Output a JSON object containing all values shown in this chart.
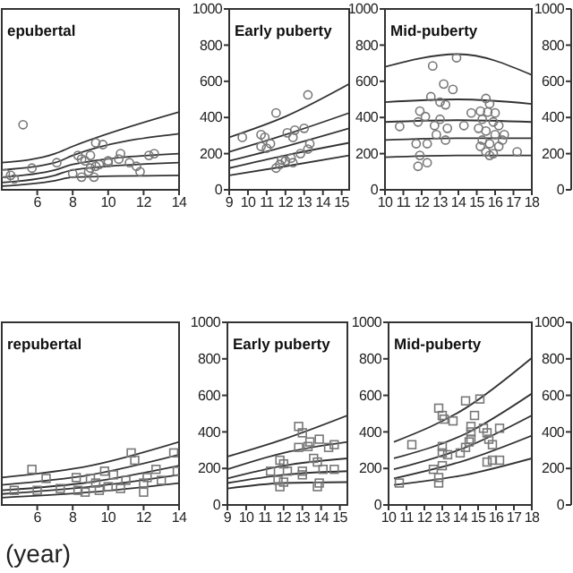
{
  "chart_data": [
    {
      "type": "scatter",
      "title": "epubertal",
      "xlim": [
        4,
        14
      ],
      "xticks": [
        6,
        8,
        10,
        12,
        14
      ],
      "ylim": [
        0,
        1000
      ],
      "tick_labels": "x",
      "grid": false,
      "series": [
        {
          "type": "line",
          "color": "#333333",
          "x": [
            4,
            7,
            8,
            14
          ],
          "values": [
            150,
            200,
            240,
            430
          ]
        },
        {
          "type": "line",
          "color": "#333333",
          "x": [
            4,
            7,
            8,
            14
          ],
          "values": [
            110,
            150,
            190,
            310
          ]
        },
        {
          "type": "line",
          "color": "#333333",
          "x": [
            4,
            7,
            8,
            14
          ],
          "values": [
            70,
            110,
            140,
            200
          ]
        },
        {
          "type": "line",
          "color": "#333333",
          "x": [
            4,
            7,
            8,
            14
          ],
          "values": [
            40,
            80,
            110,
            150
          ]
        },
        {
          "type": "line",
          "color": "#333333",
          "x": [
            4,
            7,
            8,
            14
          ],
          "values": [
            20,
            50,
            70,
            80
          ]
        },
        {
          "type": "scatter",
          "marker": "circle",
          "color": "#777777",
          "x": [
            5.2,
            4.2,
            4.5,
            4.7,
            5.7,
            7.1,
            8.3,
            8.5,
            8.7,
            9,
            9.3,
            9.7,
            9,
            9.3,
            10,
            10.7,
            10.6,
            11.2,
            11.6,
            11.8,
            12.3,
            12.6,
            8,
            8.5,
            9.2,
            8.9,
            10,
            9.5
          ],
          "values": [
            360,
            90,
            80,
            60,
            120,
            150,
            190,
            170,
            160,
            190,
            260,
            250,
            120,
            130,
            150,
            200,
            170,
            150,
            130,
            100,
            190,
            200,
            90,
            70,
            70,
            100,
            160,
            140
          ]
        }
      ]
    },
    {
      "type": "scatter",
      "title": "Early puberty",
      "xlim": [
        9,
        15.4
      ],
      "xticks": [
        9,
        10,
        11,
        12,
        13,
        14,
        15
      ],
      "ylim": [
        0,
        1000
      ],
      "yticks": [
        0,
        200,
        400,
        600,
        800,
        1000
      ],
      "grid": false,
      "series": [
        {
          "type": "line",
          "color": "#333333",
          "x": [
            9,
            12,
            15.4
          ],
          "values": [
            290,
            405,
            585
          ]
        },
        {
          "type": "line",
          "color": "#333333",
          "x": [
            9,
            12,
            15.4
          ],
          "values": [
            210,
            305,
            425
          ]
        },
        {
          "type": "line",
          "color": "#333333",
          "x": [
            9,
            12,
            15.4
          ],
          "values": [
            160,
            240,
            340
          ]
        },
        {
          "type": "line",
          "color": "#333333",
          "x": [
            9,
            12,
            15.4
          ],
          "values": [
            120,
            190,
            260
          ]
        },
        {
          "type": "line",
          "color": "#333333",
          "x": [
            9,
            12,
            15.4
          ],
          "values": [
            80,
            130,
            190
          ]
        },
        {
          "type": "scatter",
          "marker": "circle",
          "color": "#777777",
          "x": [
            13.2,
            11.5,
            9.7,
            10.7,
            10.9,
            11.2,
            10.7,
            11,
            12.1,
            12.4,
            12.5,
            13,
            13.3,
            13.2,
            12.3,
            11.8,
            11.7,
            12,
            12.4,
            11.5,
            12.8
          ],
          "values": [
            525,
            425,
            290,
            305,
            290,
            255,
            240,
            230,
            315,
            290,
            330,
            340,
            255,
            225,
            175,
            165,
            140,
            160,
            150,
            120,
            200
          ]
        }
      ]
    },
    {
      "type": "scatter",
      "title": "Mid-puberty",
      "xlim": [
        10,
        18
      ],
      "xticks": [
        10,
        11,
        12,
        13,
        14,
        15,
        16,
        17,
        18
      ],
      "ylim": [
        0,
        1000
      ],
      "yticks": [
        0,
        200,
        400,
        600,
        800,
        1000
      ],
      "y2lim": [
        0,
        1000
      ],
      "y2ticks": [
        0,
        200,
        400,
        600,
        800,
        1000
      ],
      "grid": false,
      "series": [
        {
          "type": "line",
          "color": "#333333",
          "x": [
            10,
            14,
            18
          ],
          "values": [
            680,
            750,
            635
          ]
        },
        {
          "type": "line",
          "color": "#333333",
          "x": [
            10,
            14,
            18
          ],
          "values": [
            485,
            500,
            475
          ]
        },
        {
          "type": "line",
          "color": "#333333",
          "x": [
            10,
            14,
            18
          ],
          "values": [
            375,
            385,
            375
          ]
        },
        {
          "type": "line",
          "color": "#333333",
          "x": [
            10,
            14,
            18
          ],
          "values": [
            275,
            285,
            285
          ]
        },
        {
          "type": "line",
          "color": "#333333",
          "x": [
            10,
            14,
            18
          ],
          "values": [
            180,
            190,
            190
          ]
        },
        {
          "type": "scatter",
          "marker": "circle",
          "color": "#777777",
          "x": [
            13.9,
            12.6,
            13.2,
            13.7,
            12.5,
            13,
            13.3,
            11.9,
            12.2,
            11.8,
            10.8,
            12.7,
            13,
            13.4,
            12.8,
            12.3,
            11.7,
            11.9,
            11.8,
            12.3,
            13.3,
            14.3,
            15.5,
            15.7,
            15.2,
            16,
            15.3,
            15.9,
            16.2,
            15.1,
            15.5,
            16,
            15.3,
            15.7,
            15.2,
            16.2,
            15.5,
            15.9,
            15.7,
            17.2,
            14.7,
            15.6,
            16.4,
            16.5
          ],
          "values": [
            730,
            685,
            585,
            555,
            515,
            485,
            470,
            435,
            405,
            375,
            350,
            355,
            390,
            340,
            305,
            255,
            255,
            190,
            130,
            150,
            275,
            355,
            505,
            475,
            435,
            425,
            390,
            375,
            355,
            340,
            325,
            305,
            275,
            255,
            240,
            240,
            210,
            200,
            190,
            210,
            425,
            430,
            275,
            305
          ]
        }
      ]
    },
    {
      "type": "scatter",
      "title": "repubertal",
      "xlabel": "(year)",
      "xlim": [
        4,
        14
      ],
      "xticks": [
        6,
        8,
        10,
        12,
        14
      ],
      "ylim": [
        0,
        1000
      ],
      "tick_labels": "x",
      "grid": false,
      "series": [
        {
          "type": "line",
          "color": "#333333",
          "x": [
            4,
            9,
            14
          ],
          "values": [
            150,
            215,
            345
          ]
        },
        {
          "type": "line",
          "color": "#333333",
          "x": [
            4,
            9,
            14
          ],
          "values": [
            110,
            165,
            275
          ]
        },
        {
          "type": "line",
          "color": "#333333",
          "x": [
            4,
            9,
            14
          ],
          "values": [
            80,
            125,
            215
          ]
        },
        {
          "type": "line",
          "color": "#333333",
          "x": [
            4,
            9,
            14
          ],
          "values": [
            60,
            100,
            165
          ]
        },
        {
          "type": "line",
          "color": "#333333",
          "x": [
            4,
            9,
            14
          ],
          "values": [
            40,
            70,
            120
          ]
        },
        {
          "type": "scatter",
          "marker": "square",
          "color": "#777777",
          "x": [
            5.7,
            6.5,
            8.2,
            9,
            9.8,
            10.3,
            11.3,
            11.5,
            12.7,
            13.7,
            13.9,
            9.3,
            10,
            10.7,
            8.7,
            12,
            7.3,
            4.7,
            6,
            9.5,
            11,
            12.2,
            13,
            8.3,
            12
          ],
          "values": [
            195,
            145,
            150,
            145,
            185,
            165,
            285,
            245,
            195,
            285,
            185,
            120,
            100,
            90,
            70,
            70,
            90,
            80,
            80,
            80,
            135,
            150,
            135,
            80,
            120
          ]
        }
      ]
    },
    {
      "type": "scatter",
      "title": "Early puberty",
      "xlim": [
        9,
        15.4
      ],
      "xticks": [
        9,
        10,
        11,
        12,
        13,
        14,
        15
      ],
      "ylim": [
        0,
        1000
      ],
      "yticks": [
        0,
        200,
        400,
        600,
        800,
        1000
      ],
      "grid": false,
      "series": [
        {
          "type": "line",
          "color": "#333333",
          "x": [
            9,
            12,
            15.4
          ],
          "values": [
            265,
            360,
            490
          ]
        },
        {
          "type": "line",
          "color": "#333333",
          "x": [
            9,
            12,
            15.4
          ],
          "values": [
            195,
            285,
            345
          ]
        },
        {
          "type": "line",
          "color": "#333333",
          "x": [
            9,
            12,
            15.4
          ],
          "values": [
            145,
            215,
            255
          ]
        },
        {
          "type": "line",
          "color": "#333333",
          "x": [
            9,
            12,
            15.4
          ],
          "values": [
            120,
            165,
            185
          ]
        },
        {
          "type": "line",
          "color": "#333333",
          "x": [
            9,
            12,
            15.4
          ],
          "values": [
            90,
            120,
            125
          ]
        },
        {
          "type": "scatter",
          "marker": "square",
          "color": "#777777",
          "x": [
            12.8,
            13,
            12.8,
            13.3,
            13.4,
            13.9,
            14.4,
            14.7,
            13.6,
            13.8,
            12,
            11.8,
            11.3,
            12.2,
            13,
            14.1,
            14.7,
            13,
            11.7,
            12,
            11.8,
            13.8,
            13.9
          ],
          "values": [
            430,
            395,
            315,
            320,
            345,
            360,
            315,
            330,
            255,
            235,
            225,
            245,
            185,
            185,
            185,
            195,
            195,
            165,
            135,
            125,
            100,
            100,
            120
          ]
        }
      ]
    },
    {
      "type": "scatter",
      "title": "Mid-puberty",
      "xlim": [
        10,
        18
      ],
      "xticks": [
        10,
        11,
        12,
        13,
        14,
        15,
        16,
        17,
        18
      ],
      "ylim": [
        0,
        1000
      ],
      "yticks": [
        0,
        200,
        400,
        600,
        800,
        1000
      ],
      "y2lim": [
        0,
        1000
      ],
      "y2ticks": [
        0,
        200,
        400,
        600,
        800,
        1000
      ],
      "grid": false,
      "series": [
        {
          "type": "line",
          "color": "#333333",
          "x": [
            10.3,
            14.3,
            18
          ],
          "values": [
            345,
            530,
            805
          ]
        },
        {
          "type": "line",
          "color": "#333333",
          "x": [
            10.3,
            14.3,
            18
          ],
          "values": [
            255,
            390,
            610
          ]
        },
        {
          "type": "line",
          "color": "#333333",
          "x": [
            10.3,
            14.3,
            18
          ],
          "values": [
            195,
            315,
            490
          ]
        },
        {
          "type": "line",
          "color": "#333333",
          "x": [
            10.3,
            14.3,
            18
          ],
          "values": [
            145,
            245,
            380
          ]
        },
        {
          "type": "line",
          "color": "#333333",
          "x": [
            10.3,
            14.3,
            18
          ],
          "values": [
            110,
            165,
            255
          ]
        },
        {
          "type": "scatter",
          "marker": "square",
          "color": "#777777",
          "x": [
            12.8,
            13,
            13.1,
            13.6,
            14.3,
            15.1,
            14.8,
            14.6,
            14.6,
            14.6,
            15.3,
            15.5,
            15.6,
            15.8,
            16.2,
            11.3,
            13,
            13,
            13.3,
            14,
            14.3,
            14.5,
            15.5,
            15.8,
            16.2,
            10.6,
            12.8,
            12.8,
            12.5,
            13
          ],
          "values": [
            530,
            490,
            470,
            460,
            570,
            580,
            490,
            430,
            400,
            360,
            420,
            395,
            360,
            330,
            420,
            330,
            320,
            285,
            275,
            285,
            315,
            345,
            235,
            245,
            245,
            120,
            150,
            120,
            195,
            215
          ]
        }
      ]
    }
  ]
}
